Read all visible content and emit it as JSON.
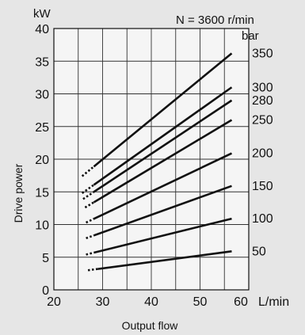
{
  "chart_data": {
    "type": "line",
    "title": "",
    "annotation": "N = 3600 r/min",
    "xlabel": "Output flow",
    "ylabel": "Drive power",
    "y_unit": "kW",
    "x_unit": "L/min",
    "x_ticks": [
      "20",
      "30",
      "40",
      "50",
      "60"
    ],
    "y_ticks": [
      "0",
      "5",
      "10",
      "15",
      "20",
      "25",
      "30",
      "35",
      "40"
    ],
    "xlim": [
      20,
      60
    ],
    "ylim": [
      0,
      40
    ],
    "grid": true,
    "series_label_header": "bar",
    "series": [
      {
        "name": "350",
        "x_start": 25.8,
        "x_dotted_end": 28.2,
        "y_start": 17.4,
        "x_end": 56.5,
        "y_end": 36.2
      },
      {
        "name": "300",
        "x_start": 25.8,
        "x_dotted_end": 28.2,
        "y_start": 14.8,
        "x_end": 56.5,
        "y_end": 31.0
      },
      {
        "name": "280",
        "x_start": 26.0,
        "x_dotted_end": 28.2,
        "y_start": 13.9,
        "x_end": 56.5,
        "y_end": 29.0
      },
      {
        "name": "250",
        "x_start": 26.4,
        "x_dotted_end": 28.2,
        "y_start": 12.6,
        "x_end": 56.5,
        "y_end": 26.0
      },
      {
        "name": "200",
        "x_start": 26.6,
        "x_dotted_end": 28.2,
        "y_start": 10.3,
        "x_end": 56.5,
        "y_end": 20.9
      },
      {
        "name": "150",
        "x_start": 26.6,
        "x_dotted_end": 28.2,
        "y_start": 7.9,
        "x_end": 56.5,
        "y_end": 15.9
      },
      {
        "name": "100",
        "x_start": 26.6,
        "x_dotted_end": 28.2,
        "y_start": 5.4,
        "x_end": 56.5,
        "y_end": 10.9
      },
      {
        "name": "50",
        "x_start": 27.0,
        "x_dotted_end": 29.0,
        "y_start": 3.0,
        "x_end": 56.5,
        "y_end": 5.9
      }
    ]
  }
}
